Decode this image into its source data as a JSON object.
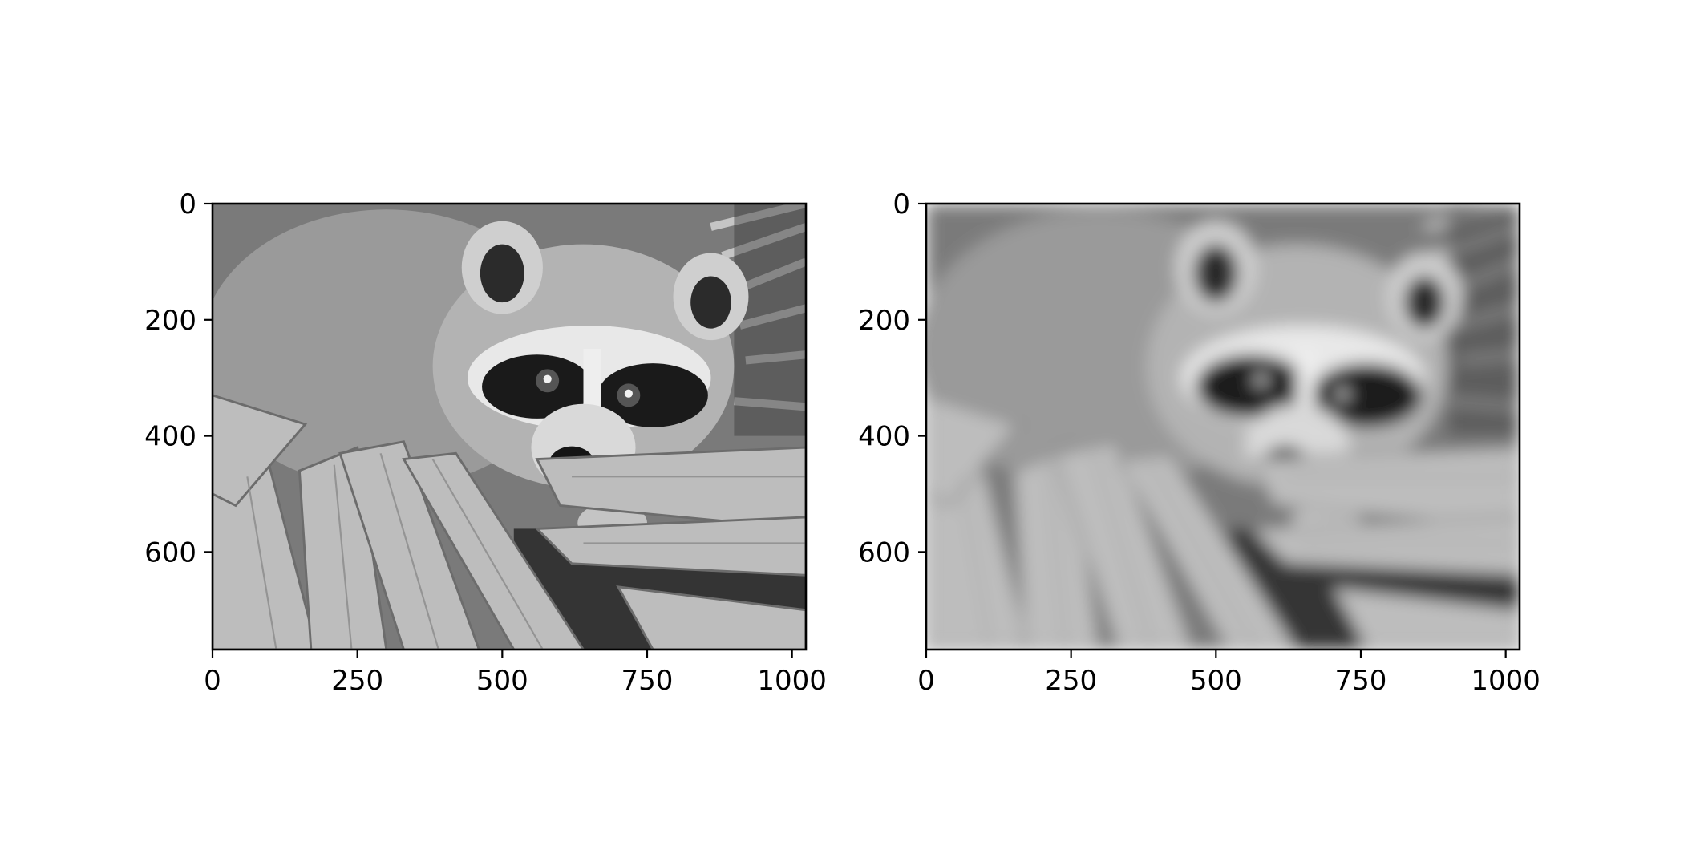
{
  "chart_data": [
    {
      "type": "image",
      "image_description": "grayscale raccoon face photograph (sharp)",
      "colormap": "gray",
      "xlim": [
        0,
        1024
      ],
      "ylim": [
        768,
        0
      ],
      "xticks": [
        0,
        250,
        500,
        750,
        1000
      ],
      "yticks": [
        0,
        200,
        400,
        600
      ],
      "xtick_labels": [
        "0",
        "250",
        "500",
        "750",
        "1000"
      ],
      "ytick_labels": [
        "0",
        "200",
        "400",
        "600"
      ],
      "title": "",
      "xlabel": "",
      "ylabel": ""
    },
    {
      "type": "image",
      "image_description": "same raccoon photograph, heavily blurred",
      "colormap": "gray",
      "xlim": [
        0,
        1024
      ],
      "ylim": [
        768,
        0
      ],
      "xticks": [
        0,
        250,
        500,
        750,
        1000
      ],
      "yticks": [
        0,
        200,
        400,
        600
      ],
      "xtick_labels": [
        "0",
        "250",
        "500",
        "750",
        "1000"
      ],
      "ytick_labels": [
        "0",
        "200",
        "400",
        "600"
      ],
      "title": "",
      "xlabel": "",
      "ylabel": ""
    }
  ]
}
